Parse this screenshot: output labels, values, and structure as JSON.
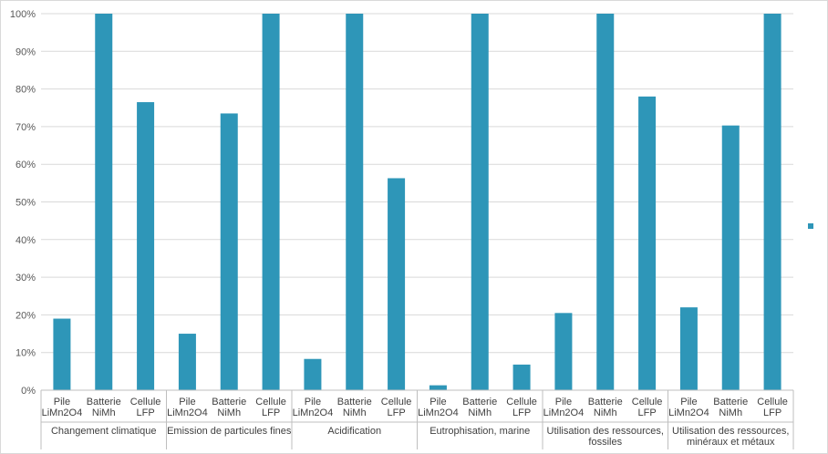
{
  "chart_data": {
    "type": "bar",
    "groups": [
      {
        "label": [
          "Changement climatique"
        ],
        "categories": [
          [
            "Pile",
            "LiMn2O4"
          ],
          [
            "Batterie",
            "NiMh"
          ],
          [
            "Cellule",
            "LFP"
          ]
        ],
        "values": [
          19,
          100,
          76.5
        ]
      },
      {
        "label": [
          "Emission de particules fines"
        ],
        "categories": [
          [
            "Pile",
            "LiMn2O4"
          ],
          [
            "Batterie",
            "NiMh"
          ],
          [
            "Cellule",
            "LFP"
          ]
        ],
        "values": [
          15,
          73.5,
          100
        ]
      },
      {
        "label": [
          "Acidification"
        ],
        "categories": [
          [
            "Pile",
            "LiMn2O4"
          ],
          [
            "Batterie",
            "NiMh"
          ],
          [
            "Cellule",
            "LFP"
          ]
        ],
        "values": [
          8.3,
          100,
          56.3
        ]
      },
      {
        "label": [
          "Eutrophisation, marine"
        ],
        "categories": [
          [
            "Pile",
            "LiMn2O4"
          ],
          [
            "Batterie",
            "NiMh"
          ],
          [
            "Cellule",
            "LFP"
          ]
        ],
        "values": [
          1.3,
          100,
          6.8
        ]
      },
      {
        "label": [
          "Utilisation des ressources,",
          "fossiles"
        ],
        "categories": [
          [
            "Pile",
            "LiMn2O4"
          ],
          [
            "Batterie",
            "NiMh"
          ],
          [
            "Cellule",
            "LFP"
          ]
        ],
        "values": [
          20.5,
          100,
          78
        ]
      },
      {
        "label": [
          "Utilisation des ressources,",
          "minéraux et métaux"
        ],
        "categories": [
          [
            "Pile",
            "LiMn2O4"
          ],
          [
            "Batterie",
            "NiMh"
          ],
          [
            "Cellule",
            "LFP"
          ]
        ],
        "values": [
          22,
          70.3,
          100
        ]
      }
    ],
    "y_ticks": [
      "0%",
      "10%",
      "20%",
      "30%",
      "40%",
      "50%",
      "60%",
      "70%",
      "80%",
      "90%",
      "100%"
    ],
    "ylim": [
      0,
      100
    ],
    "grid": true,
    "legend_position": "right",
    "colors": {
      "bar": "#2e96b8",
      "grid": "#d9d9d9",
      "axis": "#bfbfbf",
      "legend_marker": "#2e96b8"
    }
  }
}
